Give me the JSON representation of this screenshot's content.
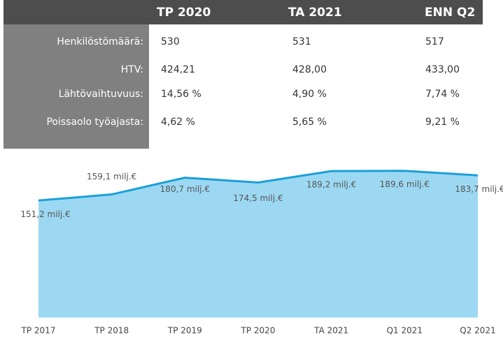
{
  "table": {
    "header": [
      "TP 2020",
      "TA 2021",
      "ENN Q2"
    ],
    "rows": [
      {
        "label": "Henkilöstömäärä:",
        "cells": [
          "530",
          "531",
          "517"
        ]
      },
      {
        "label": "HTV:",
        "cells": [
          "424,21",
          "428,00",
          "433,00"
        ]
      },
      {
        "label": "Lähtövaihtuvuus:",
        "cells": [
          "14,56 %",
          "4,90 %",
          "7,74 %"
        ]
      },
      {
        "label": "Poissaolo työajasta:",
        "cells": [
          "4,62 %",
          "5,65 %",
          "9,21 %"
        ]
      }
    ]
  },
  "chart_data": {
    "type": "area",
    "categories": [
      "TP 2017",
      "TP 2018",
      "TP 2019",
      "TP 2020",
      "TA 2021",
      "Q1 2021",
      "Q2 2021"
    ],
    "values": [
      151.2,
      159.1,
      180.7,
      174.5,
      189.2,
      189.6,
      183.7
    ],
    "value_labels": [
      "151,2 milj.€",
      "159,1 milj.€",
      "180,7 milj.€",
      "174,5 milj.€",
      "189,2 milj.€",
      "189,6 milj.€",
      "183,7 milj.€"
    ],
    "color": "#1a9fd8",
    "fill": "#9dd8f2",
    "ylim": [
      0,
      220
    ]
  }
}
